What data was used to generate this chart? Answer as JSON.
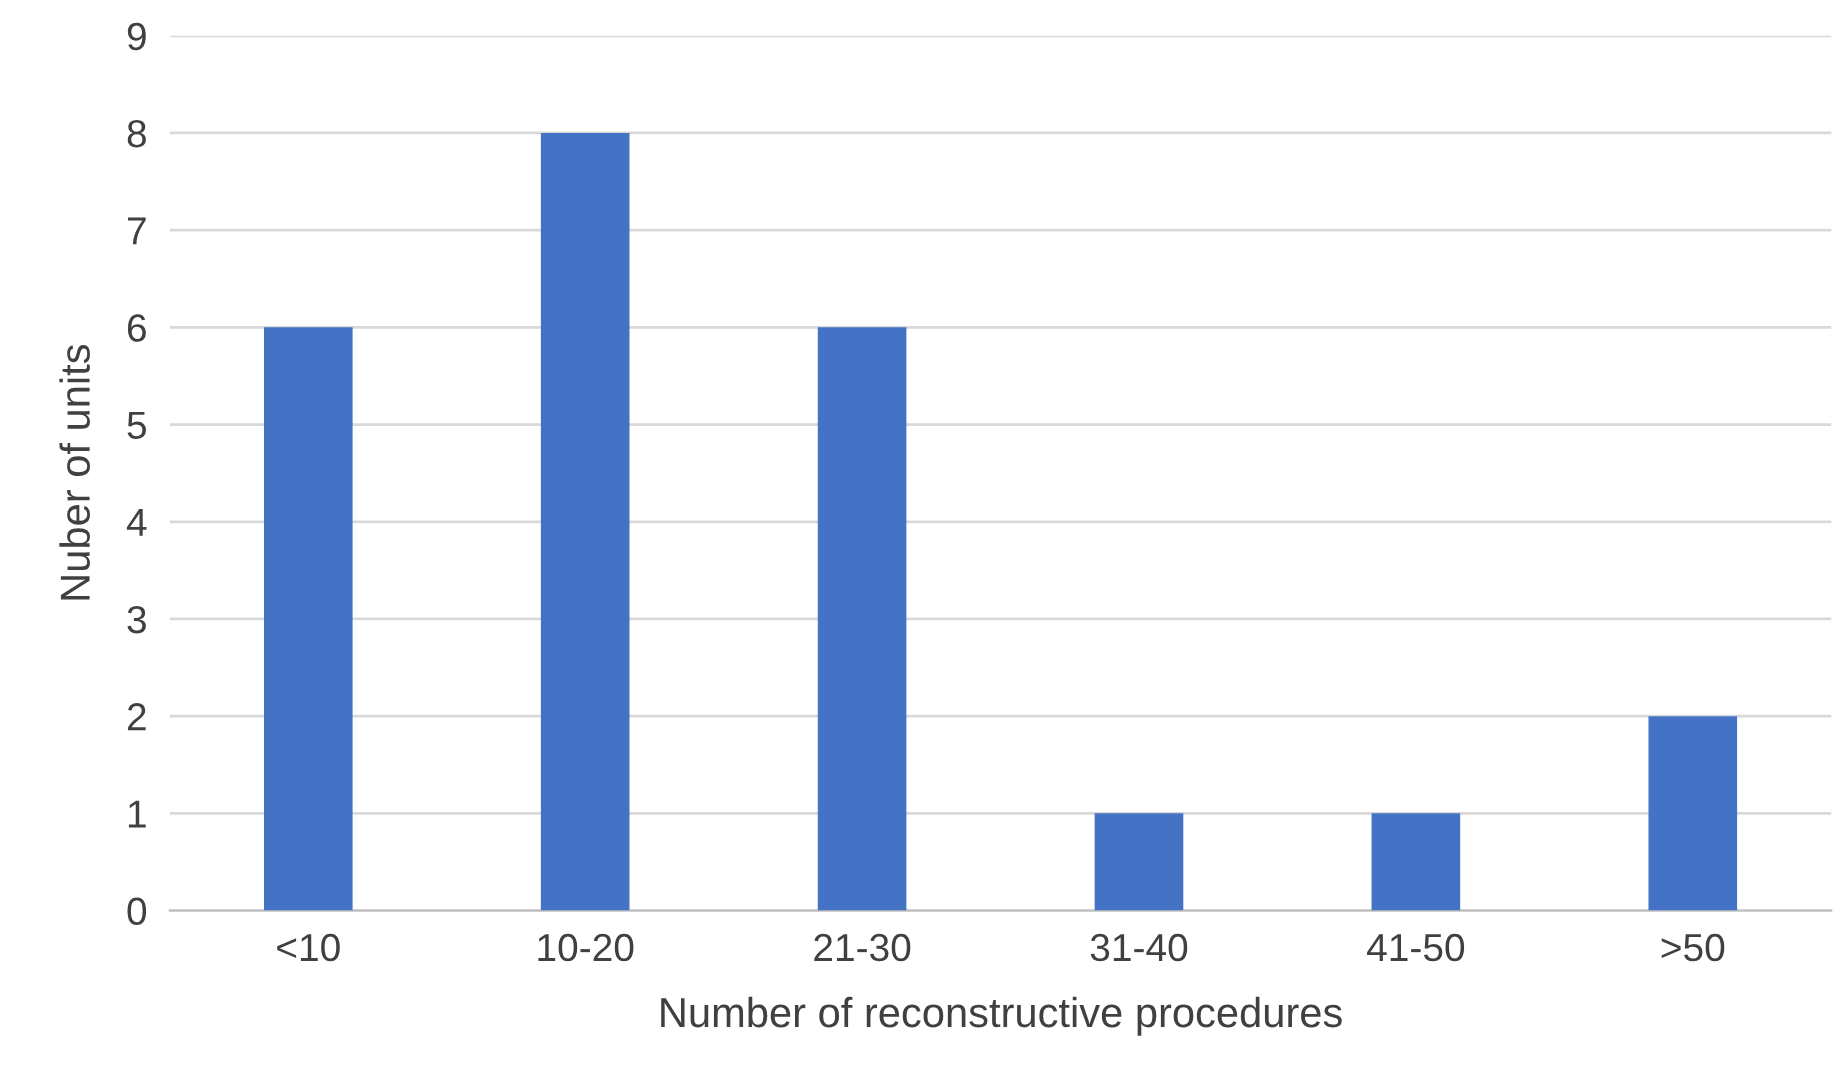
{
  "chart_data": {
    "type": "bar",
    "xlabel": "Number of reconstructive procedures",
    "ylabel": "Nuber of units",
    "categories": [
      "<10",
      "10-20",
      "21-30",
      "31-40",
      "41-50",
      ">50"
    ],
    "values": [
      6,
      8,
      6,
      1,
      1,
      2
    ],
    "color": "#4472c4",
    "ylim": [
      0,
      9
    ],
    "yticks": [
      0,
      1,
      2,
      3,
      4,
      5,
      6,
      7,
      8,
      9
    ],
    "grid": "y",
    "legend": false
  }
}
